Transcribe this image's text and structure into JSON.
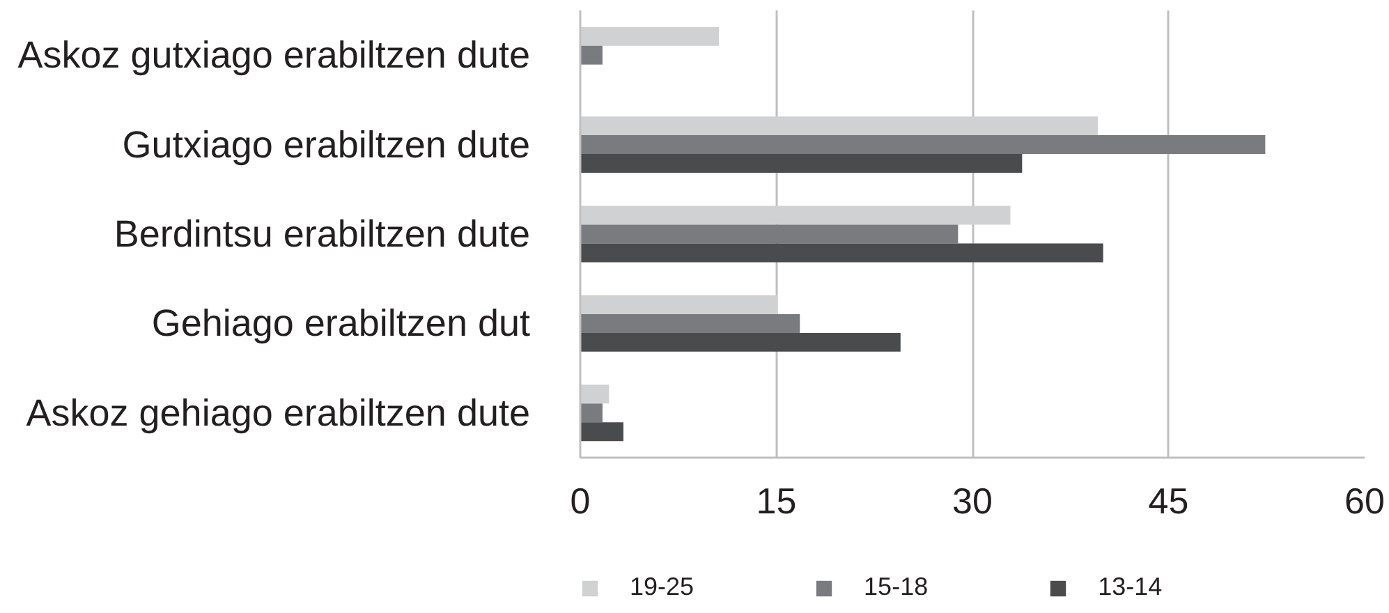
{
  "chart_data": {
    "type": "bar",
    "orientation": "horizontal",
    "categories": [
      "Askoz gutxiago erabiltzen dute",
      "Gutxiago erabiltzen dute",
      "Berdintsu erabiltzen dute",
      "Gehiago erabiltzen dut",
      "Askoz gehiago erabiltzen dute"
    ],
    "series": [
      {
        "name": "19-25",
        "color": "#d0d1d3",
        "values": [
          10.6,
          39.6,
          32.9,
          15.1,
          2.2
        ]
      },
      {
        "name": "15-18",
        "color": "#7a7b7f",
        "values": [
          1.7,
          52.4,
          28.9,
          16.8,
          1.7
        ]
      },
      {
        "name": "13-14",
        "color": "#4a4b4d",
        "values": [
          null,
          33.8,
          40.0,
          24.5,
          3.3
        ]
      }
    ],
    "xlim": [
      0,
      60
    ],
    "xticks": [
      0,
      15,
      30,
      45,
      60
    ],
    "grid": "x",
    "legend": "bottom"
  }
}
